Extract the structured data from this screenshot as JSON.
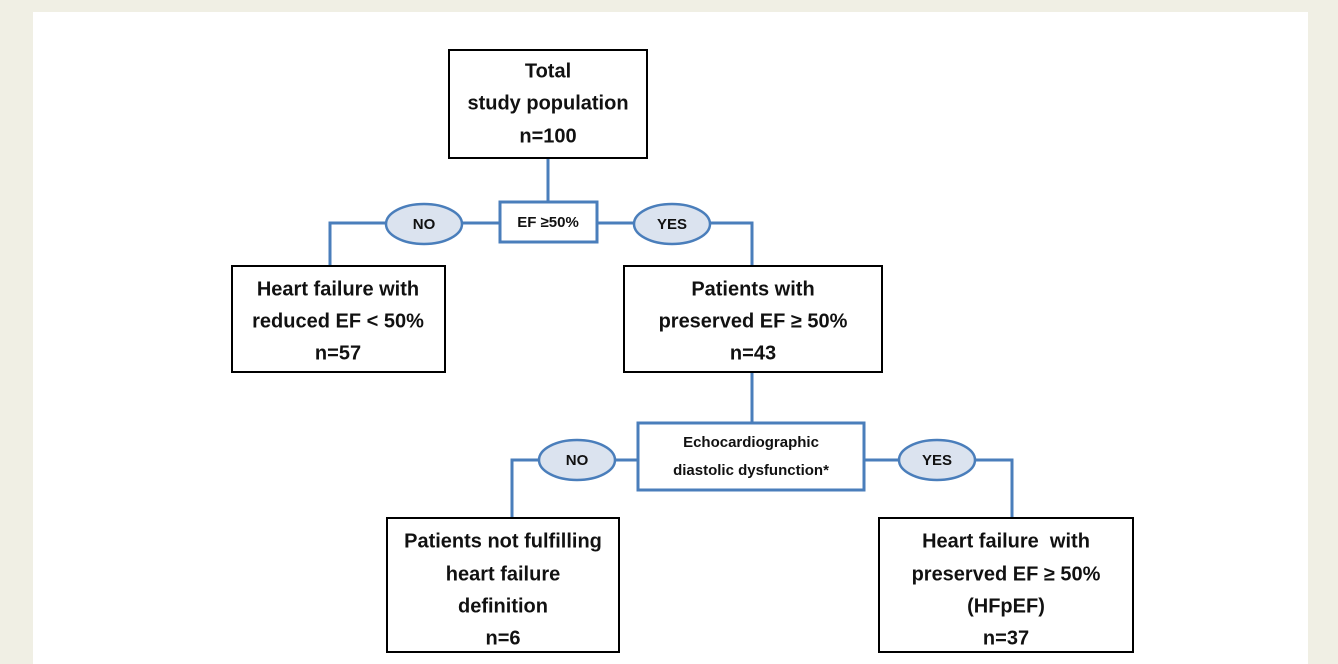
{
  "nodes": [
    {
      "lines": [
        "Total",
        "study population",
        "n=100"
      ]
    },
    {
      "lines": [
        "EF ≥50%"
      ]
    },
    {
      "lines": [
        "Heart failure with",
        "reduced EF < 50%",
        "n=57"
      ]
    },
    {
      "lines": [
        "Patients with",
        "preserved EF ≥ 50%",
        "n=43"
      ]
    },
    {
      "lines": [
        "Echocardiographic",
        "diastolic dysfunction*"
      ]
    },
    {
      "lines": [
        "Patients not fulfilling",
        "heart failure",
        "definition",
        "n=6"
      ]
    },
    {
      "lines": [
        "Heart failure  with",
        "preserved EF ≥ 50%",
        "(HFpEF)",
        "n=37"
      ]
    }
  ],
  "branch_labels": [
    "NO",
    "YES",
    "NO",
    "YES"
  ]
}
